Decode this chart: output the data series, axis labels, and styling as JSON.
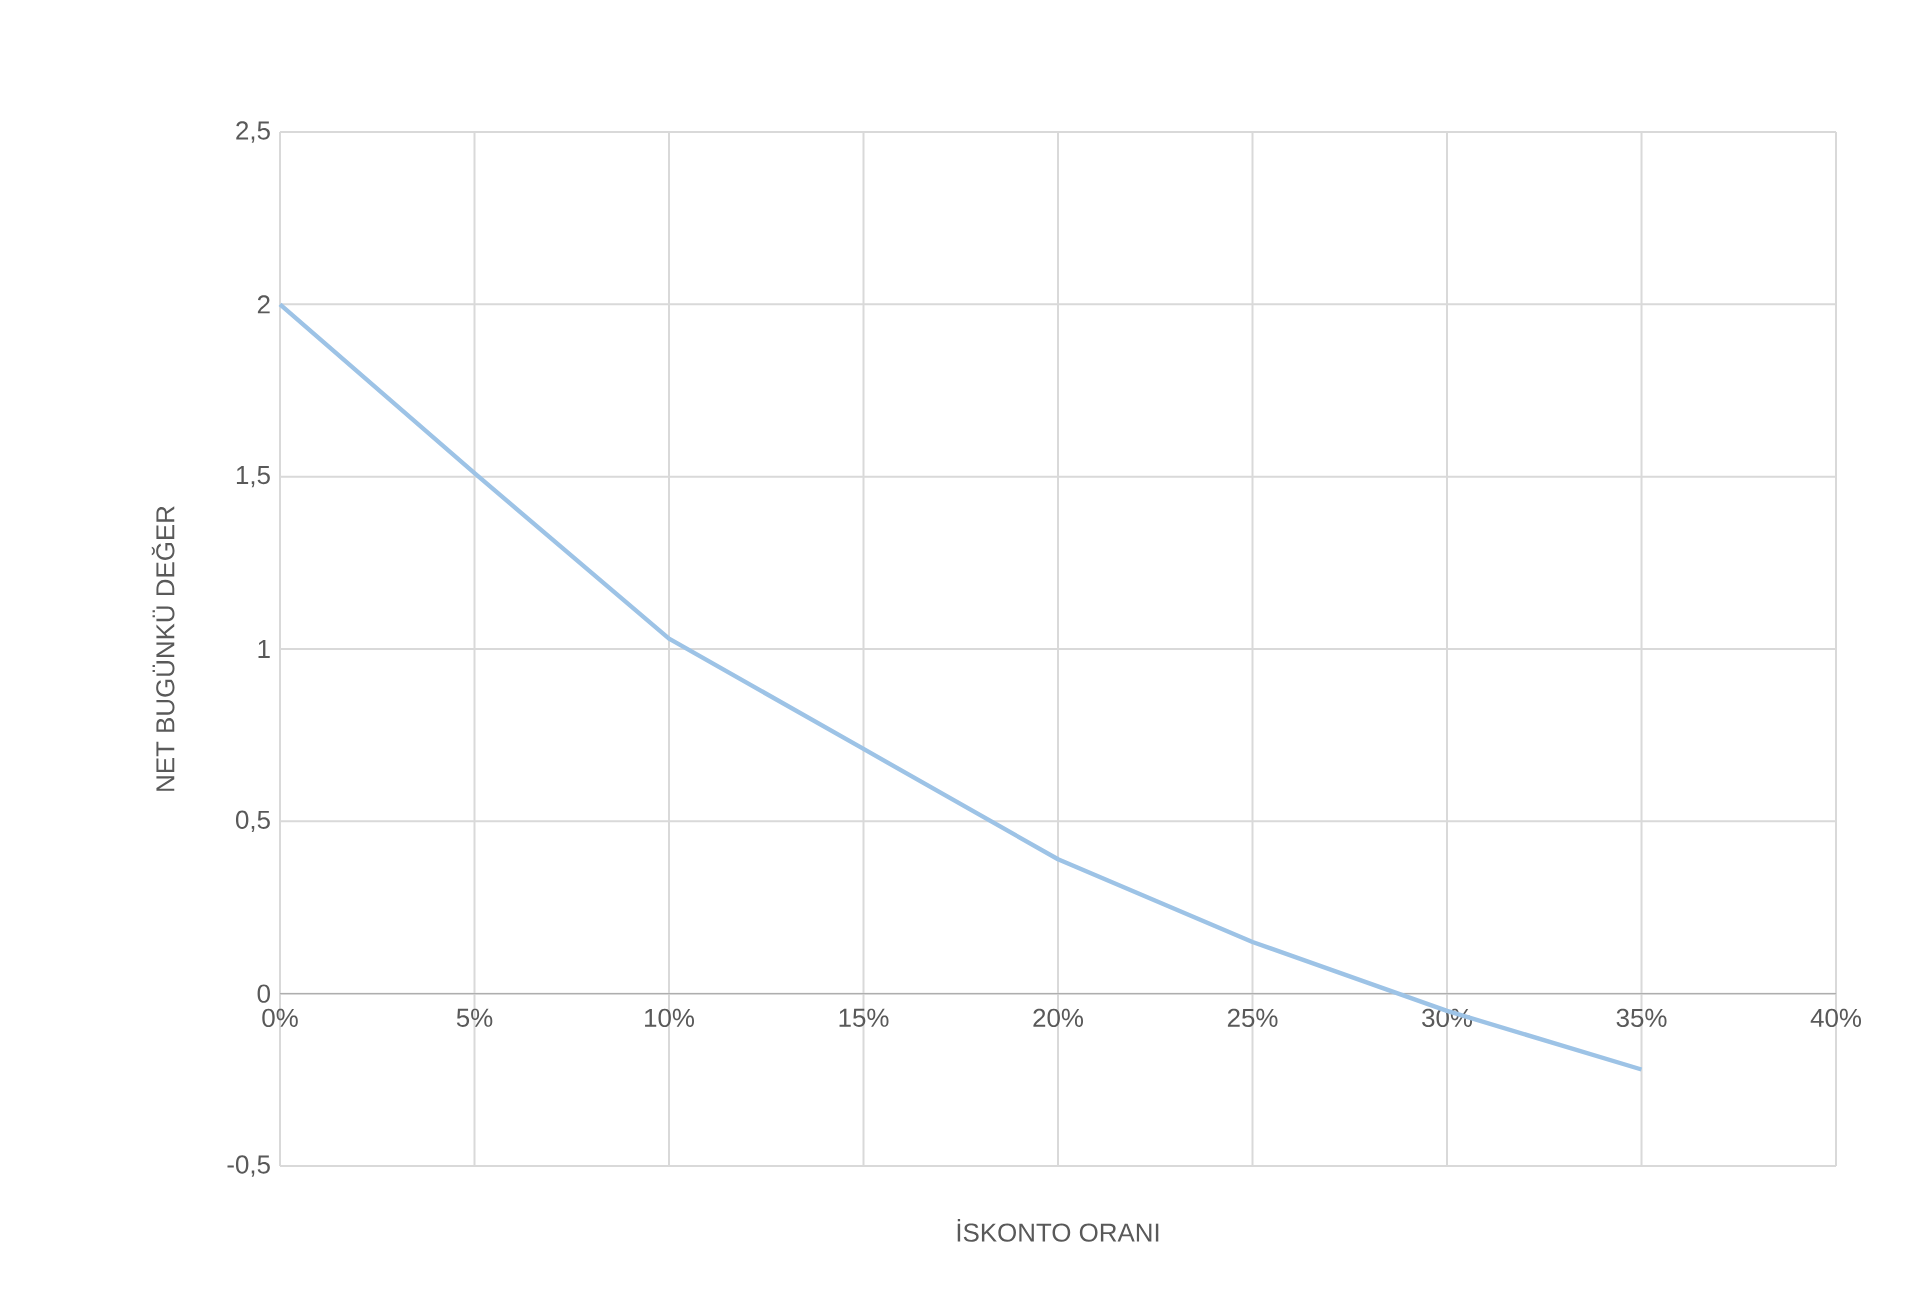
{
  "chart_data": {
    "type": "line",
    "xlabel": "İSKONTO ORANI",
    "ylabel": "NET BUGÜNKÜ DEĞER",
    "x": [
      0,
      5,
      10,
      15,
      20,
      25,
      30,
      35
    ],
    "series": [
      {
        "color": "#9dc3e6",
        "values": [
          2.0,
          1.51,
          1.03,
          0.71,
          0.39,
          0.15,
          -0.05,
          -0.22
        ]
      }
    ],
    "xlim": [
      0,
      40
    ],
    "xticks": [
      {
        "value": 0,
        "label": "0%"
      },
      {
        "value": 5,
        "label": "5%"
      },
      {
        "value": 10,
        "label": "10%"
      },
      {
        "value": 15,
        "label": "15%"
      },
      {
        "value": 20,
        "label": "20%"
      },
      {
        "value": 25,
        "label": "25%"
      },
      {
        "value": 30,
        "label": "30%"
      },
      {
        "value": 35,
        "label": "35%"
      },
      {
        "value": 40,
        "label": "40%"
      }
    ],
    "ylim": [
      -0.5,
      2.5
    ],
    "yticks": [
      {
        "value": -0.5,
        "label": "-0,5"
      },
      {
        "value": 0,
        "label": "0"
      },
      {
        "value": 0.5,
        "label": "0,5"
      },
      {
        "value": 1,
        "label": "1"
      },
      {
        "value": 1.5,
        "label": "1,5"
      },
      {
        "value": 2,
        "label": "2"
      },
      {
        "value": 2.5,
        "label": "2,5"
      }
    ],
    "grid": true,
    "marker": "none",
    "line_style": "solid"
  }
}
